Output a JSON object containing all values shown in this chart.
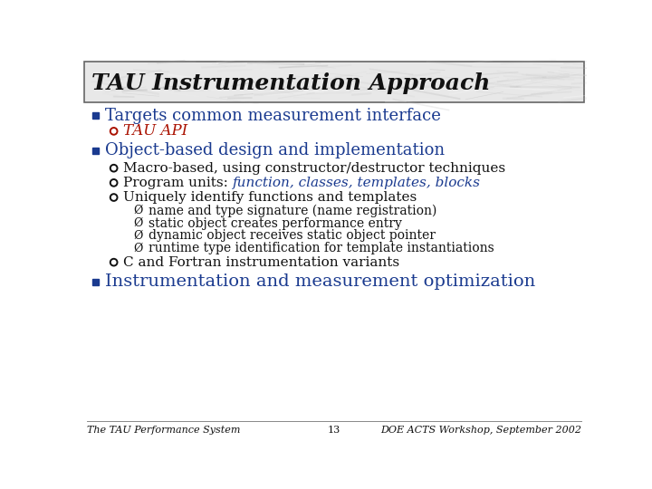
{
  "title": "TAU Instrumentation Approach",
  "bg_color": "#ffffff",
  "title_bg_base": "#d8d8d8",
  "blue_color": "#1a3a8f",
  "red_color": "#aa1100",
  "dark_color": "#111111",
  "footer_left": "The TAU Performance System",
  "footer_center": "13",
  "footer_right": "DOE ACTS Workshop, September 2002",
  "bullet1_text": "Targets common measurement interface",
  "bullet1_sub": "TAU API",
  "bullet2_text": "Object-based design and implementation",
  "bullet2_sub1": "Macro-based, using constructor/destructor techniques",
  "bullet2_sub2_prefix": "Program units: ",
  "bullet2_sub2_colored": "function, classes, templates, blocks",
  "bullet2_sub3": "Uniquely identify functions and templates",
  "sub3_items": [
    "name and type signature (name registration)",
    "static object creates performance entry",
    "dynamic object receives static object pointer",
    "runtime type identification for template instantiations"
  ],
  "bullet2_sub4": "C and Fortran instrumentation variants",
  "bullet3_text": "Instrumentation and measurement optimization",
  "title_fontsize": 18,
  "b1_fontsize": 13,
  "b2_fontsize": 11,
  "b3_fontsize": 10,
  "footer_fontsize": 8
}
